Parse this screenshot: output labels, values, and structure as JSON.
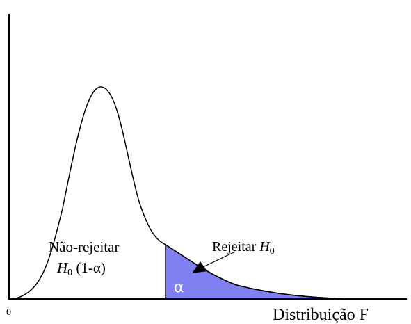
{
  "axis": {
    "origin": "0",
    "label": "Distribuição F"
  },
  "regions": {
    "accept": {
      "line1": "Não-rejeitar",
      "symbol": "H",
      "subscript": "0",
      "suffix": " (1-α)"
    },
    "reject": {
      "label": "Rejeitar ",
      "symbol": "H",
      "subscript": "0"
    },
    "alpha": "α"
  }
}
